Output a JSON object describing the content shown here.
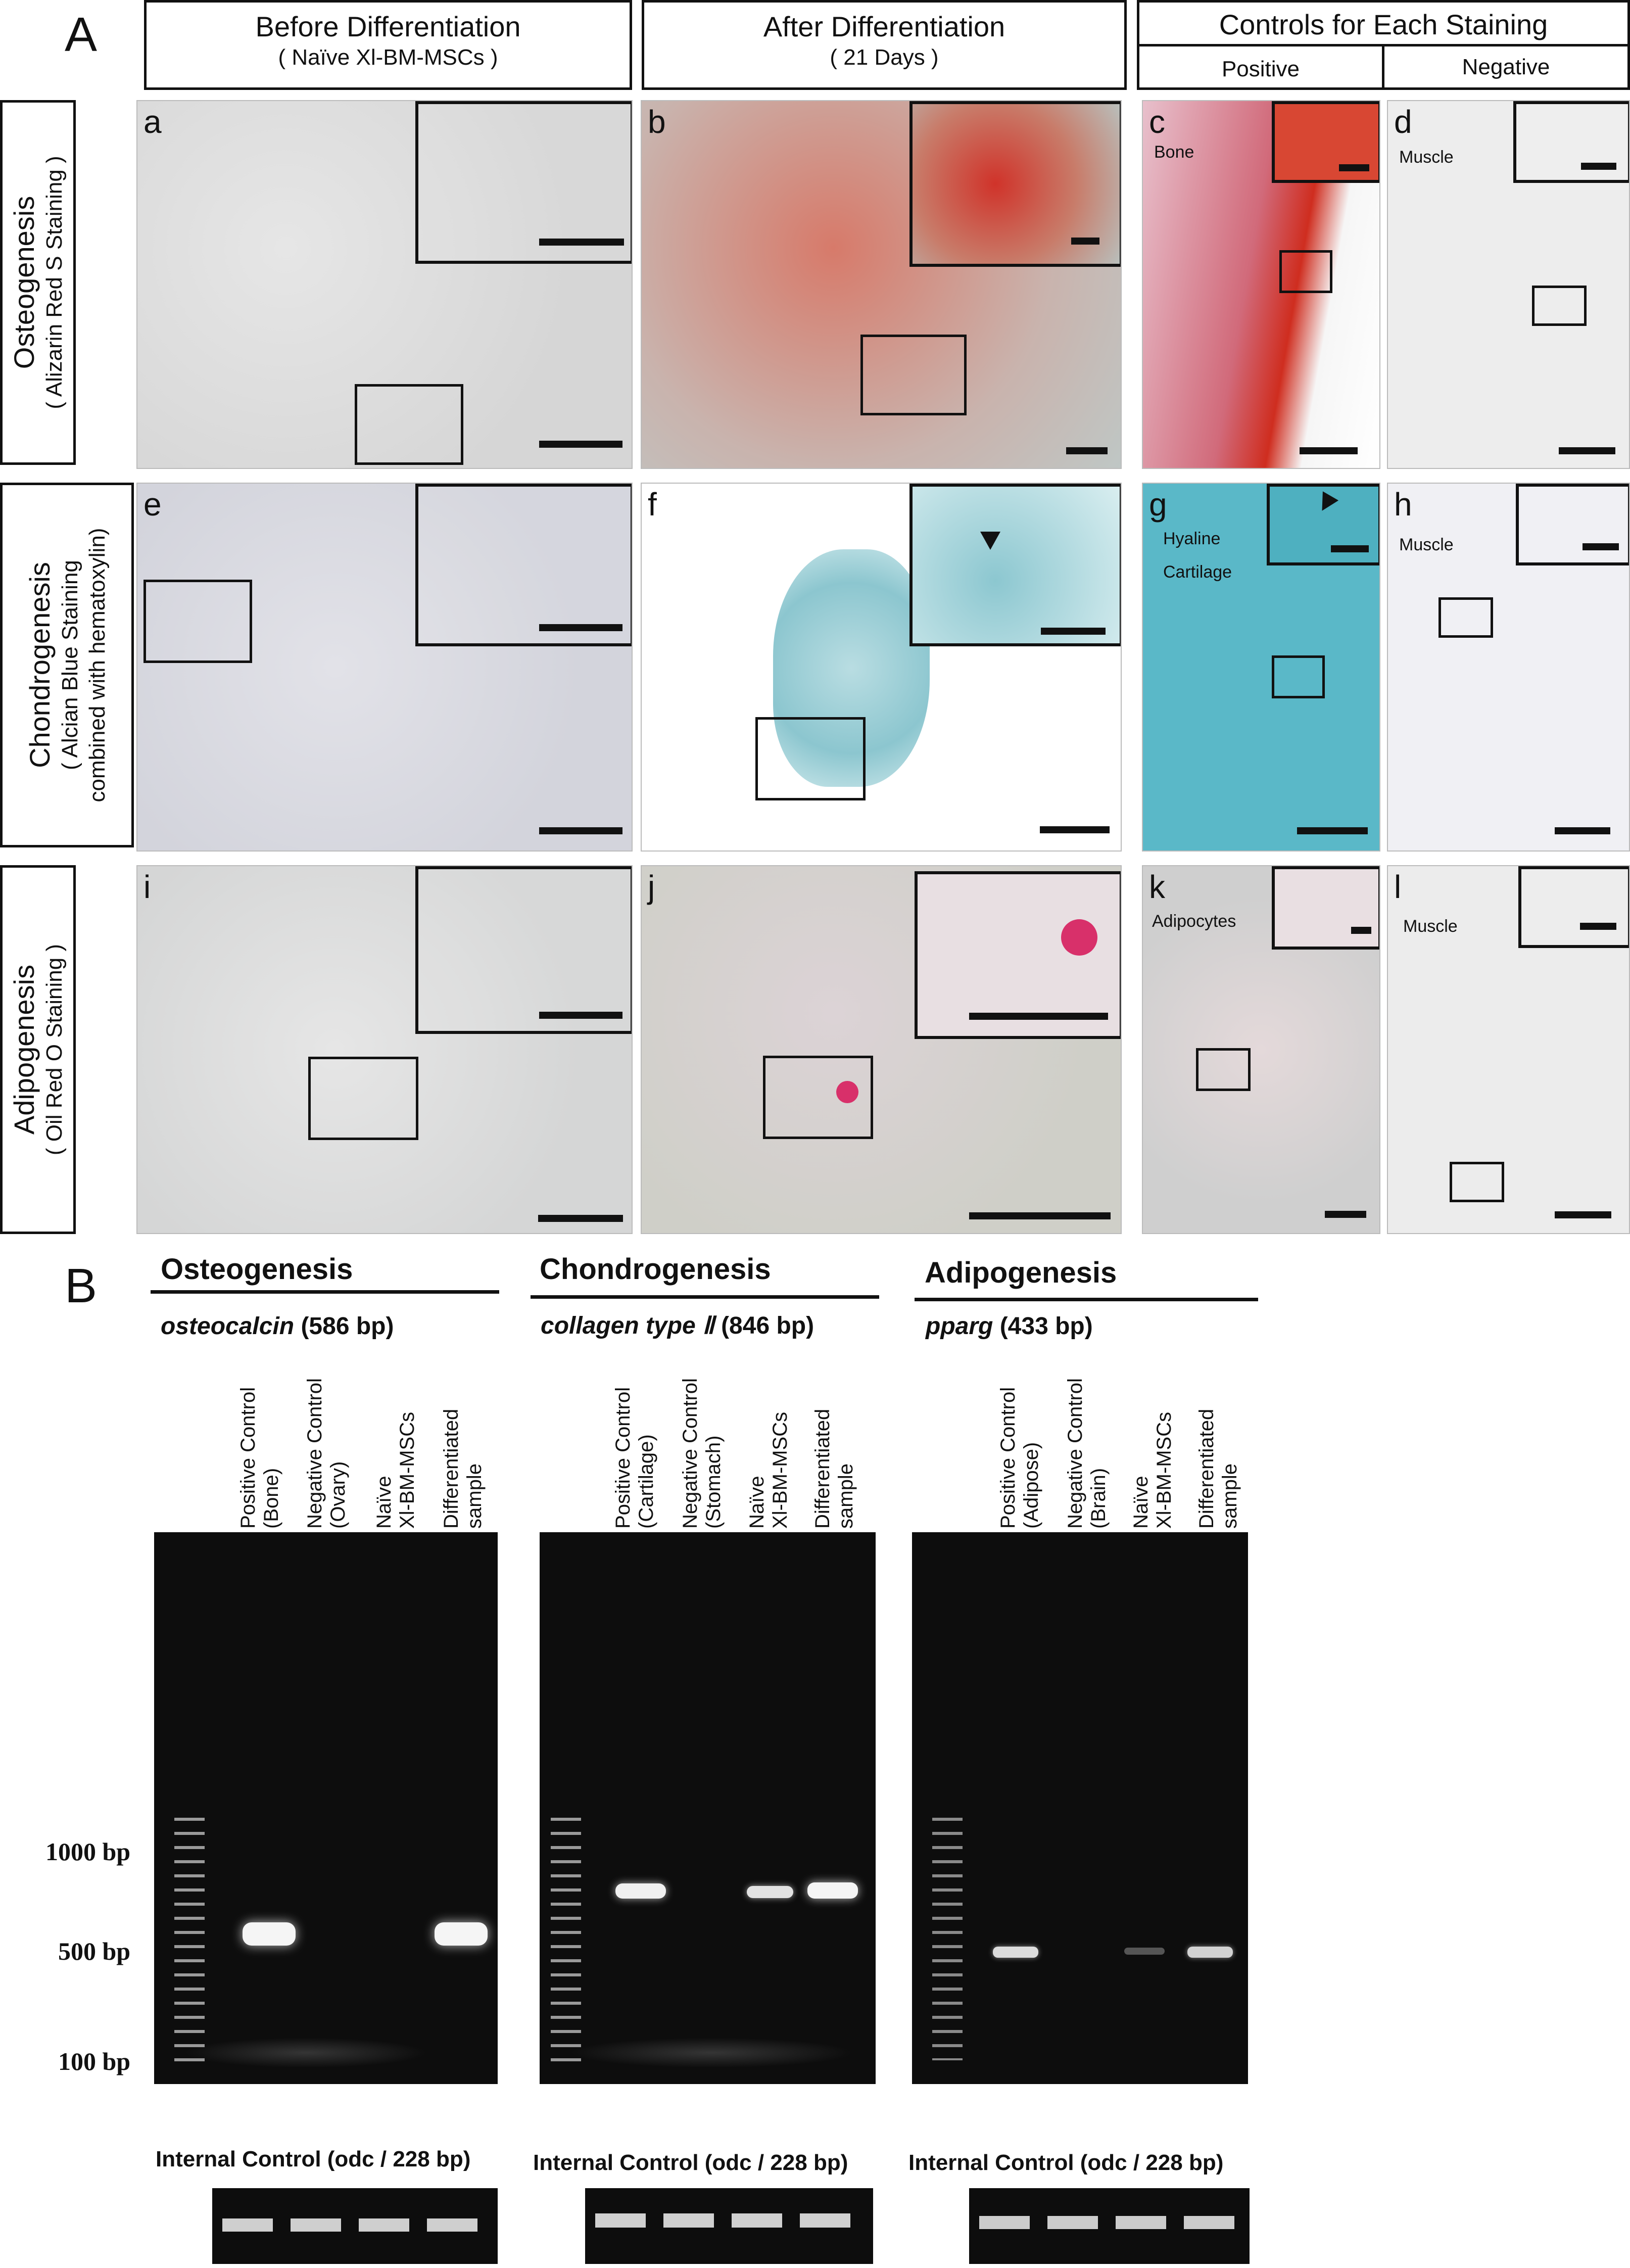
{
  "figure_label_A": "A",
  "figure_label_B": "B",
  "headers": {
    "before": {
      "title": "Before Differentiation",
      "sub": "( Naïve Xl-BM-MSCs )"
    },
    "after": {
      "title": "After Differentiation",
      "sub": "( 21 Days )"
    },
    "controls": {
      "title": "Controls for Each Staining",
      "positive": "Positive",
      "negative": "Negative"
    }
  },
  "rows": [
    {
      "title": "Osteogenesis",
      "sub": "( Alizarin Red S Staining )"
    },
    {
      "title": "Chondrogenesis",
      "sub": "( Alcian Blue Staining",
      "sub2": "combined with hematoxylin)"
    },
    {
      "title": "Adipogenesis",
      "sub": "( Oil Red O Staining )"
    }
  ],
  "panels": {
    "a": "a",
    "b": "b",
    "c": "c",
    "d": "d",
    "e": "e",
    "f": "f",
    "g": "g",
    "h": "h",
    "i": "i",
    "j": "j",
    "k": "k",
    "l": "l"
  },
  "tissue_labels": {
    "c": "Bone",
    "d": "Muscle",
    "g1": "Hyaline",
    "g2": "Cartilage",
    "h": "Muscle",
    "k": "Adipocytes",
    "l": "Muscle"
  },
  "gels": [
    {
      "title": "Osteogenesis",
      "gene": "osteocalcin",
      "size": "(586 bp)",
      "lanes": [
        [
          "Positive Control",
          "(Bone)"
        ],
        [
          "Negative Control",
          "(Ovary)"
        ],
        [
          "Naïve",
          "Xl-BM-MSCs"
        ],
        [
          "Differentiated",
          "sample"
        ]
      ],
      "internal": "Internal Control (odc / 228 bp)"
    },
    {
      "title": "Chondrogenesis",
      "gene": "collagen type Ⅱ",
      "size": "(846 bp)",
      "lanes": [
        [
          "Positive Control",
          "(Cartilage)"
        ],
        [
          "Negative Control",
          "(Stomach)"
        ],
        [
          "Naïve",
          "Xl-BM-MSCs"
        ],
        [
          "Differentiated",
          "sample"
        ]
      ],
      "internal": "Internal Control (odc / 228 bp)"
    },
    {
      "title": "Adipogenesis",
      "gene": "pparg",
      "size": "(433 bp)",
      "lanes": [
        [
          "Positive Control",
          "(Adipose)"
        ],
        [
          "Negative Control",
          "(Brain)"
        ],
        [
          "Naïve",
          "Xl-BM-MSCs"
        ],
        [
          "Differentiated",
          "sample"
        ]
      ],
      "internal": "Internal Control (odc / 228 bp)"
    }
  ],
  "ladder_labels": [
    "1000 bp",
    "500 bp",
    "100 bp"
  ],
  "colors": {
    "alizarin": "#d9352a",
    "alcian": "#4fb3c4",
    "oilred": "#d8306a",
    "muscle_bg": "#ececec",
    "gel_bg": "#0d0d0d"
  }
}
